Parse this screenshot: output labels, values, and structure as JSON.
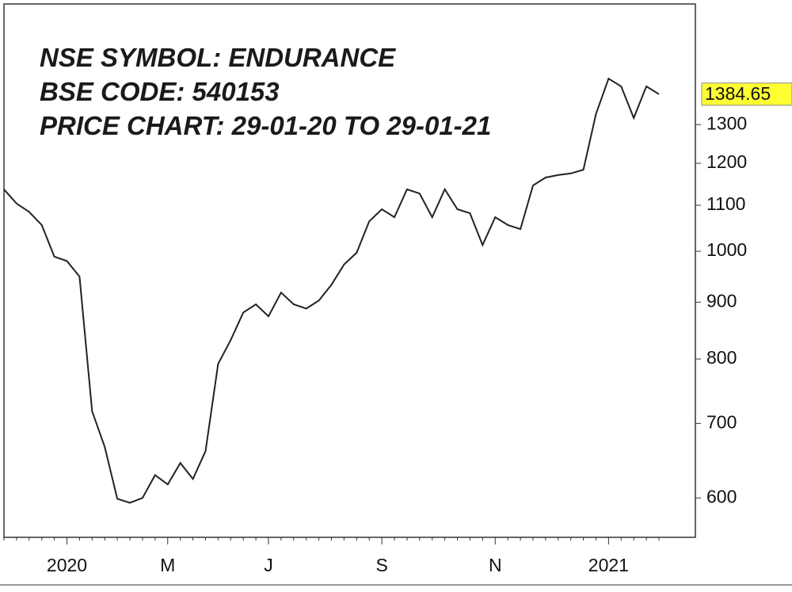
{
  "chart_data": {
    "type": "line",
    "title_lines": [
      "NSE SYMBOL: ENDURANCE",
      "BSE CODE: 540153",
      "PRICE CHART: 29-01-20 TO 29-01-21"
    ],
    "categories": [
      null,
      null,
      null,
      null,
      null,
      "2020",
      null,
      null,
      null,
      null,
      null,
      null,
      null,
      "M",
      null,
      null,
      null,
      null,
      null,
      null,
      null,
      "J",
      null,
      null,
      null,
      null,
      null,
      null,
      null,
      null,
      "S",
      null,
      null,
      null,
      null,
      null,
      null,
      null,
      null,
      "N",
      null,
      null,
      null,
      null,
      null,
      null,
      null,
      null,
      "2021",
      null,
      null,
      null,
      null
    ],
    "series": [
      {
        "color": "#222222",
        "values": [
          1137,
          1104,
          1085,
          1056,
          989,
          980,
          949,
          718,
          667,
          599,
          594,
          600,
          629,
          617,
          645,
          624,
          661,
          792,
          832,
          881,
          896,
          874,
          918,
          896,
          888,
          903,
          933,
          973,
          997,
          1064,
          1091,
          1073,
          1137,
          1127,
          1073,
          1137,
          1091,
          1082,
          1013,
          1073,
          1056,
          1047,
          1146,
          1165,
          1171,
          1175,
          1184,
          1329,
          1430,
          1407,
          1318,
          1407,
          1384.65
        ]
      }
    ],
    "ylim": [
      553,
      1669
    ],
    "yticks": [
      600,
      700,
      800,
      900,
      1000,
      1100,
      1200,
      1300
    ],
    "log_scale": true,
    "last_value_color": "#ffff33"
  }
}
